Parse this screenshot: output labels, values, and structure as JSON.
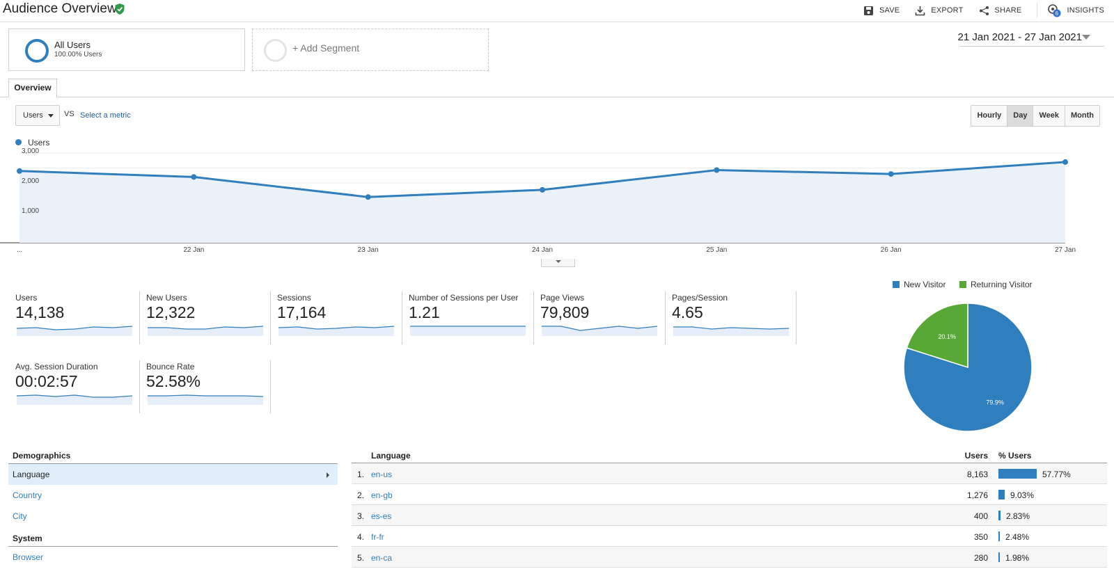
{
  "header": {
    "title": "Audience Overview",
    "actions": {
      "save": "SAVE",
      "export": "EXPORT",
      "share": "SHARE",
      "insights": "INSIGHTS",
      "insights_badge": "6"
    }
  },
  "segments": {
    "active": {
      "name": "All Users",
      "sub": "100.00% Users"
    },
    "add_label": "+ Add Segment"
  },
  "date_range": "21 Jan 2021 - 27 Jan 2021",
  "tabs": [
    {
      "label": "Overview"
    }
  ],
  "controls": {
    "metric": "Users",
    "vs": "VS",
    "select_metric": "Select a metric",
    "granularity": [
      "Hourly",
      "Day",
      "Week",
      "Month"
    ],
    "active_granularity": "Day"
  },
  "chart_data": {
    "type": "area",
    "series": [
      {
        "name": "Users",
        "values": [
          2400,
          2200,
          1530,
          1770,
          2430,
          2300,
          2700
        ]
      }
    ],
    "categories": [
      "...",
      "22 Jan",
      "23 Jan",
      "24 Jan",
      "25 Jan",
      "26 Jan",
      "27 Jan"
    ],
    "y_ticks": [
      "3,000",
      "2,000",
      "1,000"
    ],
    "ylim": [
      0,
      3000
    ],
    "color": "#2f7ebd",
    "fill": "#eaf1f9"
  },
  "metrics": [
    {
      "label": "Users",
      "value": "14,138",
      "trend": [
        5,
        4,
        7,
        6,
        3,
        4,
        2
      ]
    },
    {
      "label": "New Users",
      "value": "12,322",
      "trend": [
        4,
        4,
        6,
        6,
        3,
        4,
        2
      ]
    },
    {
      "label": "Sessions",
      "value": "17,164",
      "trend": [
        4,
        3,
        6,
        5,
        3,
        4,
        2
      ]
    },
    {
      "label": "Number of Sessions per User",
      "value": "1.21",
      "trend": [
        2,
        2,
        2,
        2,
        2,
        2,
        2
      ]
    },
    {
      "label": "Page Views",
      "value": "79,809",
      "trend": [
        2,
        2,
        8,
        5,
        2,
        5,
        2
      ]
    },
    {
      "label": "Pages/Session",
      "value": "4.65",
      "trend": [
        3,
        3,
        6,
        4,
        5,
        6,
        5
      ]
    },
    {
      "label": "Avg. Session Duration",
      "value": "00:02:57",
      "trend": [
        3,
        2,
        4,
        2,
        5,
        5,
        3
      ]
    },
    {
      "label": "Bounce Rate",
      "value": "52.58%",
      "trend": [
        3,
        3,
        2,
        3,
        3,
        3,
        4
      ]
    }
  ],
  "pie": {
    "legend": [
      {
        "name": "New Visitor",
        "color": "#2f7ebd"
      },
      {
        "name": "Returning Visitor",
        "color": "#58a836"
      }
    ],
    "slices": [
      {
        "name": "New Visitor",
        "value": 79.9,
        "label": "79.9%",
        "color": "#2f7ebd"
      },
      {
        "name": "Returning Visitor",
        "value": 20.1,
        "label": "20.1%",
        "color": "#58a836"
      }
    ]
  },
  "demographics": {
    "heading": "Demographics",
    "items": [
      "Language",
      "Country",
      "City"
    ],
    "active": "Language",
    "system_heading": "System",
    "system_items": [
      "Browser"
    ]
  },
  "table": {
    "headers": {
      "dimension": "Language",
      "users": "Users",
      "pct": "% Users"
    },
    "rows": [
      {
        "rank": "1.",
        "lang": "en-us",
        "users": "8,163",
        "pct": "57.77%",
        "share": 57.77
      },
      {
        "rank": "2.",
        "lang": "en-gb",
        "users": "1,276",
        "pct": "9.03%",
        "share": 9.03
      },
      {
        "rank": "3.",
        "lang": "es-es",
        "users": "400",
        "pct": "2.83%",
        "share": 2.83
      },
      {
        "rank": "4.",
        "lang": "fr-fr",
        "users": "350",
        "pct": "2.48%",
        "share": 2.48
      },
      {
        "rank": "5.",
        "lang": "en-ca",
        "users": "280",
        "pct": "1.98%",
        "share": 1.98
      }
    ]
  }
}
